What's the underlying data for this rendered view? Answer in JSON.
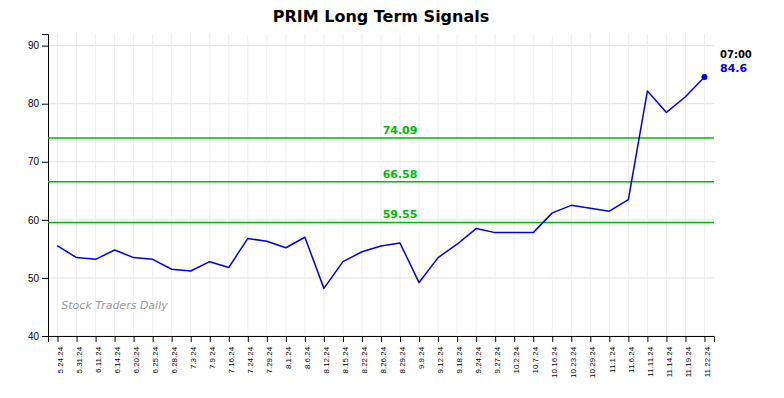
{
  "chart_data": {
    "type": "line",
    "title": "PRIM Long Term Signals",
    "categories": [
      "5.24.24",
      "5.31.24",
      "6.11.24",
      "6.14.24",
      "6.20.24",
      "6.25.24",
      "6.28.24",
      "7.3.24",
      "7.9.24",
      "7.16.24",
      "7.24.24",
      "7.29.24",
      "8.1.24",
      "8.6.24",
      "8.12.24",
      "8.15.24",
      "8.22.24",
      "8.26.24",
      "8.29.24",
      "9.9.24",
      "9.12.24",
      "9.18.24",
      "9.24.24",
      "9.27.24",
      "10.2.24",
      "10.7.24",
      "10.16.24",
      "10.23.24",
      "10.29.24",
      "11.1.24",
      "11.6.24",
      "11.11.24",
      "11.14.24",
      "11.19.24",
      "11.22.24"
    ],
    "values": [
      55.5,
      53.5,
      53.2,
      54.8,
      53.5,
      53.2,
      51.5,
      51.2,
      52.8,
      51.8,
      56.8,
      56.3,
      55.2,
      57.0,
      48.2,
      52.8,
      54.5,
      55.5,
      56.0,
      49.2,
      53.5,
      55.8,
      58.5,
      57.8,
      57.8,
      57.8,
      61.2,
      62.5,
      62.0,
      61.5,
      63.5,
      82.2,
      78.5,
      81.2,
      84.6
    ],
    "color": "#0000dd",
    "hlines": [
      {
        "y": 74.09,
        "label": "74.09",
        "color": "#00bb00"
      },
      {
        "y": 66.58,
        "label": "66.58",
        "color": "#00bb00"
      },
      {
        "y": 59.55,
        "label": "59.55",
        "color": "#00bb00"
      }
    ],
    "annotations": [
      {
        "text": "07:00"
      },
      {
        "text": "84.6",
        "color": "#0000dd"
      },
      {
        "text": "Stock Traders Daily"
      }
    ],
    "ylim": [
      40,
      92
    ],
    "yticks": [
      40,
      50,
      60,
      70,
      80,
      90
    ],
    "grid": true
  }
}
